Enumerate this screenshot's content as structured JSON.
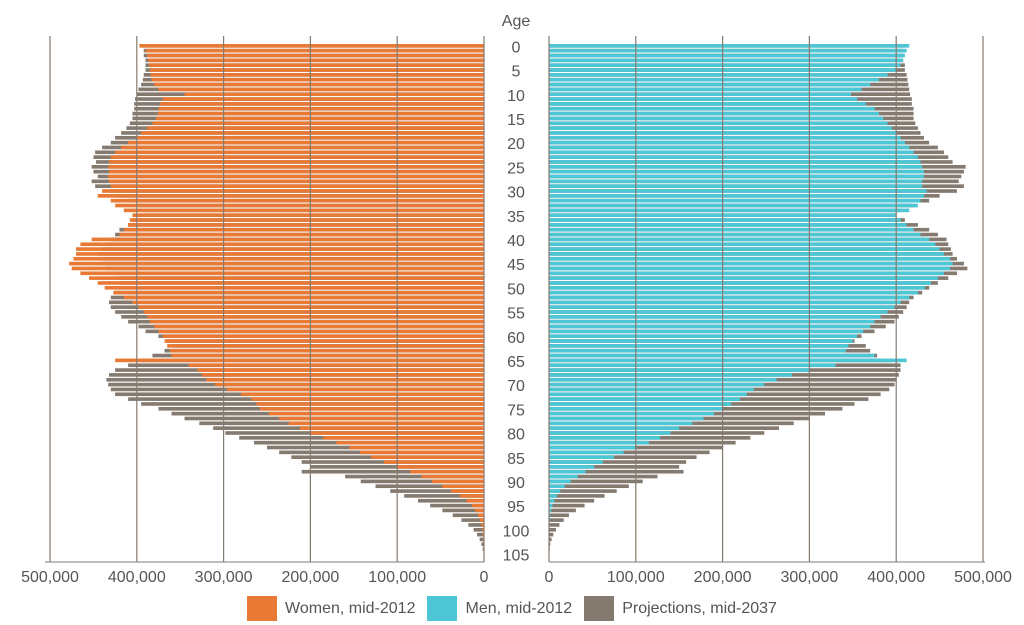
{
  "chart_data": {
    "type": "bar",
    "orientation": "horizontal",
    "subtype": "population-pyramid",
    "age_axis_title": "Age",
    "age_tick_labels": [
      "0",
      "5",
      "10",
      "15",
      "20",
      "25",
      "30",
      "35",
      "40",
      "45",
      "50",
      "55",
      "60",
      "65",
      "70",
      "75",
      "80",
      "85",
      "90",
      "95",
      "100",
      "105"
    ],
    "value_tick_labels_left": [
      "500,000",
      "400,000",
      "300,000",
      "200,000",
      "100,000",
      "0"
    ],
    "value_tick_labels_right": [
      "0",
      "100,000",
      "200,000",
      "300,000",
      "400,000",
      "500,000"
    ],
    "xlim": [
      0,
      500000
    ],
    "grid": true,
    "legend_position": "bottom",
    "colors": {
      "women": "#e87a36",
      "men": "#4dc6d6",
      "projection": "#857a70"
    },
    "series": [
      {
        "name": "Women, mid-2012",
        "side": "left",
        "values": [
          397000,
          390000,
          388000,
          387000,
          386000,
          385000,
          384000,
          383000,
          380000,
          375000,
          345000,
          370000,
          373000,
          375000,
          376000,
          378000,
          382000,
          388000,
          395000,
          400000,
          410000,
          418000,
          425000,
          430000,
          432000,
          433000,
          432000,
          433000,
          432000,
          430000,
          440000,
          445000,
          430000,
          425000,
          415000,
          405000,
          408000,
          410000,
          415000,
          420000,
          452000,
          465000,
          470000,
          470000,
          473000,
          478000,
          475000,
          465000,
          455000,
          445000,
          437000,
          427000,
          415000,
          405000,
          398000,
          392000,
          388000,
          385000,
          380000,
          375000,
          370000,
          368000,
          365000,
          362000,
          360000,
          425000,
          340000,
          330000,
          325000,
          320000,
          310000,
          296000,
          280000,
          268000,
          262000,
          258000,
          248000,
          236000,
          225000,
          212000,
          200000,
          185000,
          170000,
          155000,
          143000,
          130000,
          115000,
          100000,
          85000,
          72000,
          60000,
          48000,
          38000,
          28000,
          20000,
          14000,
          10000,
          7000,
          5000,
          3000,
          2000,
          1500,
          1000,
          500,
          300,
          100
        ]
      },
      {
        "name": "Men, mid-2012",
        "side": "right",
        "values": [
          415000,
          412000,
          410000,
          408000,
          405000,
          400000,
          390000,
          380000,
          370000,
          360000,
          348000,
          355000,
          365000,
          375000,
          380000,
          385000,
          390000,
          395000,
          400000,
          405000,
          410000,
          415000,
          420000,
          425000,
          428000,
          430000,
          432000,
          432000,
          430000,
          430000,
          435000,
          432000,
          428000,
          425000,
          415000,
          400000,
          405000,
          412000,
          420000,
          428000,
          438000,
          445000,
          450000,
          455000,
          462000,
          465000,
          462000,
          455000,
          448000,
          440000,
          433000,
          425000,
          415000,
          405000,
          398000,
          390000,
          382000,
          375000,
          370000,
          362000,
          355000,
          350000,
          345000,
          342000,
          375000,
          412000,
          330000,
          300000,
          280000,
          262000,
          248000,
          236000,
          228000,
          220000,
          210000,
          200000,
          190000,
          178000,
          165000,
          150000,
          140000,
          128000,
          115000,
          100000,
          86000,
          75000,
          62000,
          52000,
          42000,
          33000,
          25000,
          18000,
          13000,
          9000,
          6000,
          4000,
          2500,
          1500,
          1000,
          600,
          400,
          250,
          150,
          80,
          40,
          10
        ]
      },
      {
        "name": "Projections, mid-2037",
        "side": "both",
        "values_women": [
          395000,
          392000,
          392000,
          390000,
          390000,
          390000,
          392000,
          393000,
          395000,
          398000,
          400000,
          402000,
          403000,
          403000,
          405000,
          405000,
          408000,
          412000,
          418000,
          425000,
          430000,
          440000,
          448000,
          450000,
          447000,
          452000,
          450000,
          445000,
          452000,
          448000,
          430000,
          425000,
          410000,
          398000,
          392000,
          398000,
          405000,
          410000,
          420000,
          425000,
          430000,
          435000,
          440000,
          445000,
          442000,
          440000,
          435000,
          430000,
          425000,
          420000,
          420000,
          425000,
          430000,
          432000,
          430000,
          425000,
          418000,
          410000,
          398000,
          390000,
          375000,
          365000,
          358000,
          368000,
          382000,
          395000,
          410000,
          425000,
          432000,
          435000,
          433000,
          430000,
          425000,
          410000,
          395000,
          375000,
          360000,
          345000,
          328000,
          312000,
          298000,
          282000,
          265000,
          250000,
          236000,
          222000,
          210000,
          200000,
          210000,
          160000,
          142000,
          125000,
          108000,
          92000,
          76000,
          62000,
          48000,
          36000,
          26000,
          18000,
          12000,
          8000,
          5000,
          3000,
          1500,
          500
        ],
        "values_men": [
          410000,
          408000,
          408000,
          408000,
          410000,
          410000,
          412000,
          413000,
          414000,
          415000,
          416000,
          418000,
          418000,
          420000,
          420000,
          420000,
          422000,
          425000,
          428000,
          432000,
          438000,
          448000,
          455000,
          460000,
          465000,
          480000,
          478000,
          475000,
          472000,
          478000,
          470000,
          450000,
          438000,
          420000,
          405000,
          400000,
          410000,
          425000,
          438000,
          448000,
          458000,
          460000,
          463000,
          465000,
          470000,
          478000,
          482000,
          470000,
          460000,
          448000,
          438000,
          430000,
          420000,
          415000,
          412000,
          408000,
          403000,
          398000,
          388000,
          375000,
          360000,
          352000,
          365000,
          370000,
          378000,
          395000,
          405000,
          405000,
          403000,
          400000,
          398000,
          392000,
          382000,
          368000,
          352000,
          338000,
          318000,
          300000,
          282000,
          265000,
          248000,
          232000,
          215000,
          200000,
          185000,
          170000,
          158000,
          150000,
          155000,
          125000,
          108000,
          92000,
          78000,
          64000,
          52000,
          41000,
          31000,
          23000,
          17000,
          12000,
          8000,
          5000,
          3000,
          1500,
          800,
          300
        ]
      }
    ]
  },
  "legend": {
    "women_label": "Women, mid-2012",
    "men_label": "Men, mid-2012",
    "projection_label": "Projections, mid-2037"
  }
}
